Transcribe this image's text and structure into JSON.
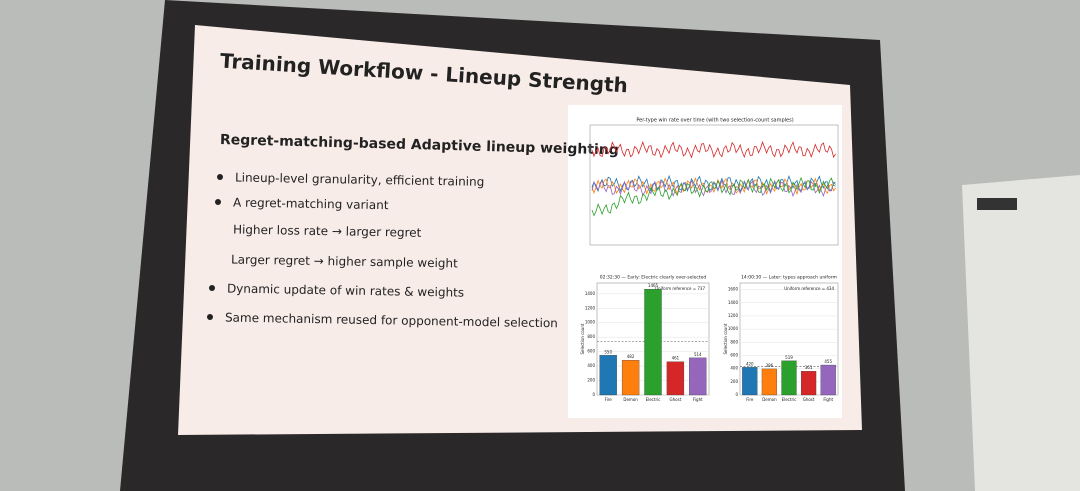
{
  "slide": {
    "title": "Training Workflow - Lineup Strength",
    "subtitle": "Regret-matching-based Adaptive lineup weighting",
    "bullets": [
      "Lineup-level granularity, efficient training",
      "A regret-matching variant",
      "Higher loss rate → larger regret",
      "Larger regret → higher sample weight",
      "Dynamic update of win rates & weights",
      "Same mechanism reused for opponent-model selection"
    ]
  },
  "figure": {
    "line_chart_title": "Per-type win rate over time (with two selection-count samples)",
    "bar_charts": [
      {
        "title": "02:32:30 — Early: Electric clearly over-selected",
        "categories": [
          "Fire",
          "Demon",
          "Electric",
          "Ghost",
          "Fight"
        ],
        "values": [
          550,
          482,
          1465,
          461,
          514
        ],
        "colors": [
          "#1f77b4",
          "#ff7f0e",
          "#2ca02c",
          "#d62728",
          "#9467bd"
        ],
        "ylim": [
          0,
          1550
        ],
        "yticks": [
          0,
          200,
          400,
          600,
          800,
          1000,
          1200,
          1400
        ],
        "reference": 737,
        "reference_label": "Uniform reference = 737",
        "ylabel": "Selection count"
      },
      {
        "title": "14:00:30 — Later: types approach uniform",
        "categories": [
          "Fire",
          "Demon",
          "Electric",
          "Ghost",
          "Fight"
        ],
        "values": [
          420,
          396,
          519,
          361,
          455
        ],
        "colors": [
          "#1f77b4",
          "#ff7f0e",
          "#2ca02c",
          "#d62728",
          "#9467bd"
        ],
        "ylim": [
          0,
          1700
        ],
        "yticks": [
          0,
          200,
          400,
          600,
          800,
          1000,
          1200,
          1400,
          1600
        ],
        "reference": 434,
        "reference_label": "Uniform reference = 434",
        "ylabel": "Selection count"
      }
    ]
  }
}
